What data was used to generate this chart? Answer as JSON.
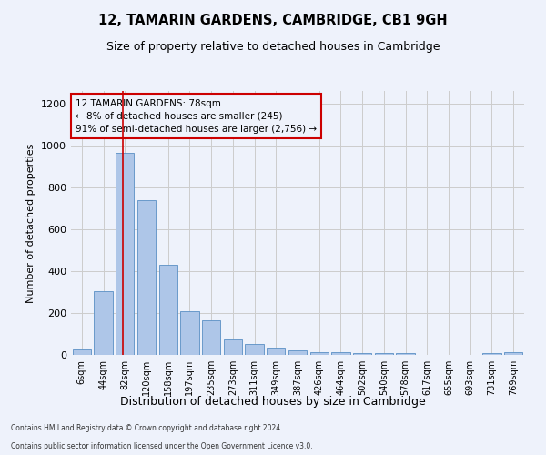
{
  "title": "12, TAMARIN GARDENS, CAMBRIDGE, CB1 9GH",
  "subtitle": "Size of property relative to detached houses in Cambridge",
  "xlabel": "Distribution of detached houses by size in Cambridge",
  "ylabel": "Number of detached properties",
  "footer_line1": "Contains HM Land Registry data © Crown copyright and database right 2024.",
  "footer_line2": "Contains public sector information licensed under the Open Government Licence v3.0.",
  "annotation_title": "12 TAMARIN GARDENS: 78sqm",
  "annotation_line1": "← 8% of detached houses are smaller (245)",
  "annotation_line2": "91% of semi-detached houses are larger (2,756) →",
  "property_size_sqm": 78,
  "bar_labels": [
    "6sqm",
    "44sqm",
    "82sqm",
    "120sqm",
    "158sqm",
    "197sqm",
    "235sqm",
    "273sqm",
    "311sqm",
    "349sqm",
    "387sqm",
    "426sqm",
    "464sqm",
    "502sqm",
    "540sqm",
    "578sqm",
    "617sqm",
    "655sqm",
    "693sqm",
    "731sqm",
    "769sqm"
  ],
  "bar_values": [
    25,
    305,
    965,
    740,
    430,
    210,
    165,
    75,
    50,
    35,
    20,
    15,
    15,
    10,
    10,
    10,
    0,
    0,
    0,
    10,
    15
  ],
  "bar_color": "#aec6e8",
  "bar_edge_color": "#5a8fc4",
  "grid_color": "#cccccc",
  "vline_color": "#cc0000",
  "annotation_box_color": "#cc0000",
  "ylim": [
    0,
    1260
  ],
  "yticks": [
    0,
    200,
    400,
    600,
    800,
    1000,
    1200
  ],
  "background_color": "#eef2fb",
  "vline_x_index": 1.9
}
